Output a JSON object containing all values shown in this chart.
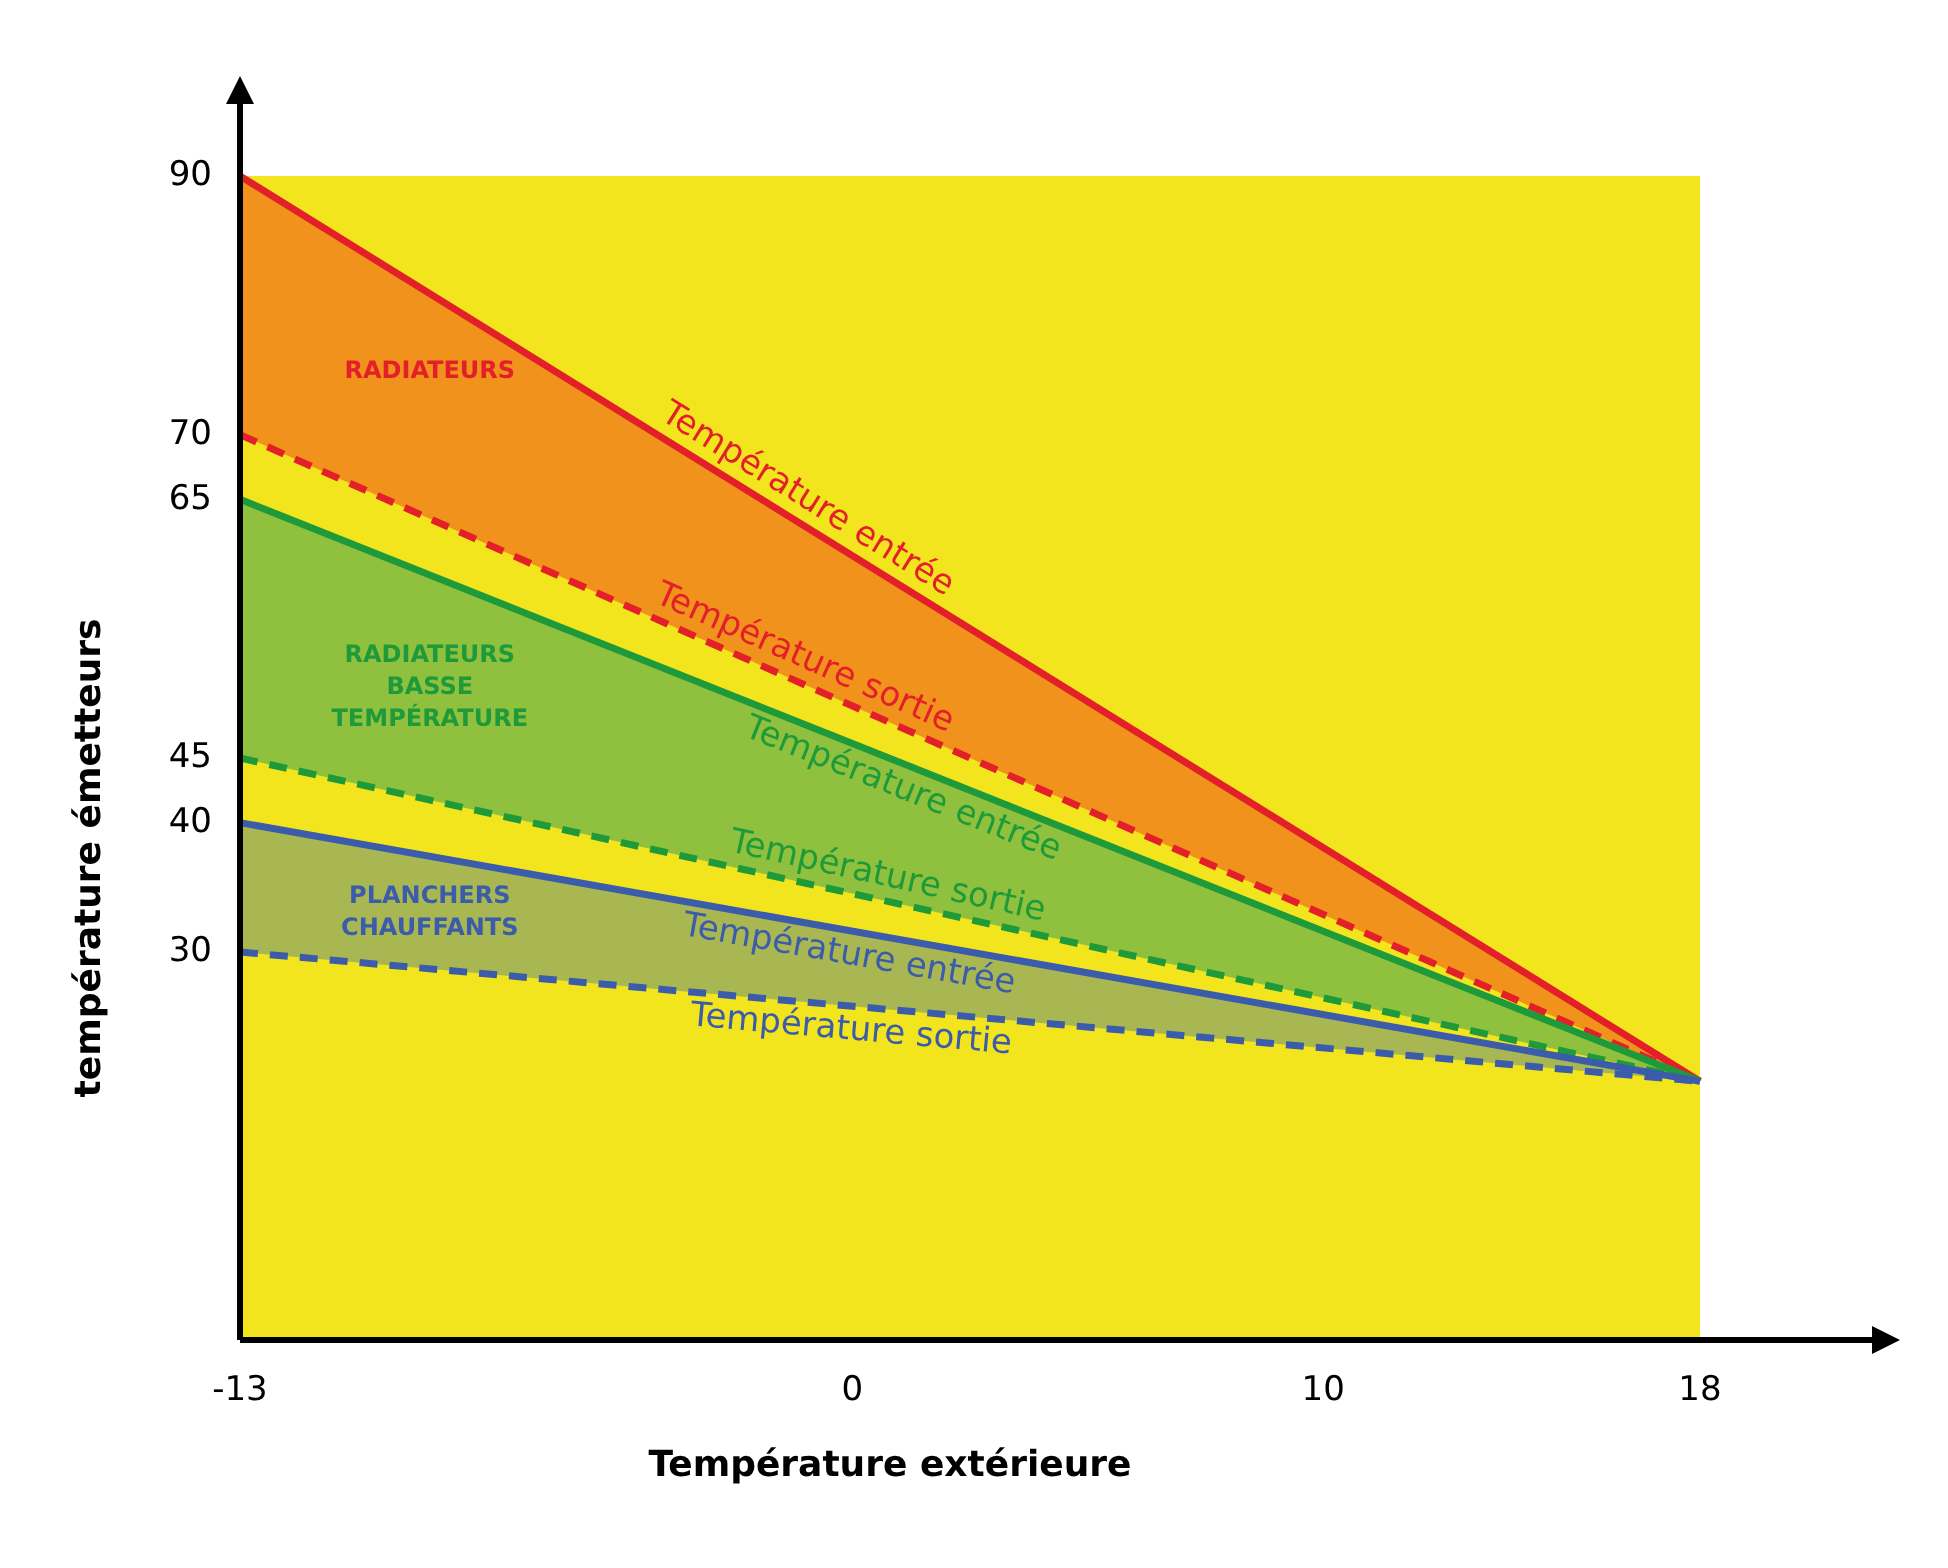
{
  "chart_data": {
    "type": "line",
    "xlabel": "Température extérieure",
    "ylabel": "température émetteurs",
    "x": [
      -13,
      18
    ],
    "xlim": [
      -13,
      18
    ],
    "xticks": [
      -13,
      0,
      10,
      18
    ],
    "ylim": [
      0,
      90
    ],
    "yticks": [
      90,
      70,
      65,
      45,
      40,
      30
    ],
    "series": [
      {
        "name": "Température entrée",
        "color": "#e3202a",
        "line_style": "solid",
        "values": [
          90,
          20
        ],
        "lower": [
          70,
          20
        ],
        "upper": [
          90,
          20
        ]
      },
      {
        "name": "Température sortie",
        "color": "#e3202a",
        "line_style": "dashed",
        "values": [
          70,
          20
        ]
      },
      {
        "name": "Température entrée",
        "color": "#1f9a3a",
        "line_style": "solid",
        "values": [
          65,
          20
        ],
        "lower": [
          45,
          20
        ],
        "upper": [
          65,
          20
        ]
      },
      {
        "name": "Température sortie",
        "color": "#1f9a3a",
        "line_style": "dashed",
        "values": [
          45,
          20
        ]
      },
      {
        "name": "Température entrée",
        "color": "#3b5bab",
        "line_style": "solid",
        "values": [
          40,
          20
        ],
        "lower": [
          30,
          20
        ],
        "upper": [
          40,
          20
        ]
      },
      {
        "name": "Température sortie",
        "color": "#3b5bab",
        "line_style": "dashed",
        "values": [
          30,
          20
        ]
      }
    ],
    "annotations": [
      "RADIATEURS",
      "RADIATEURS BASSE TEMPÉRATURE",
      "PLANCHERS CHAUFFANTS"
    ],
    "grid": false
  }
}
